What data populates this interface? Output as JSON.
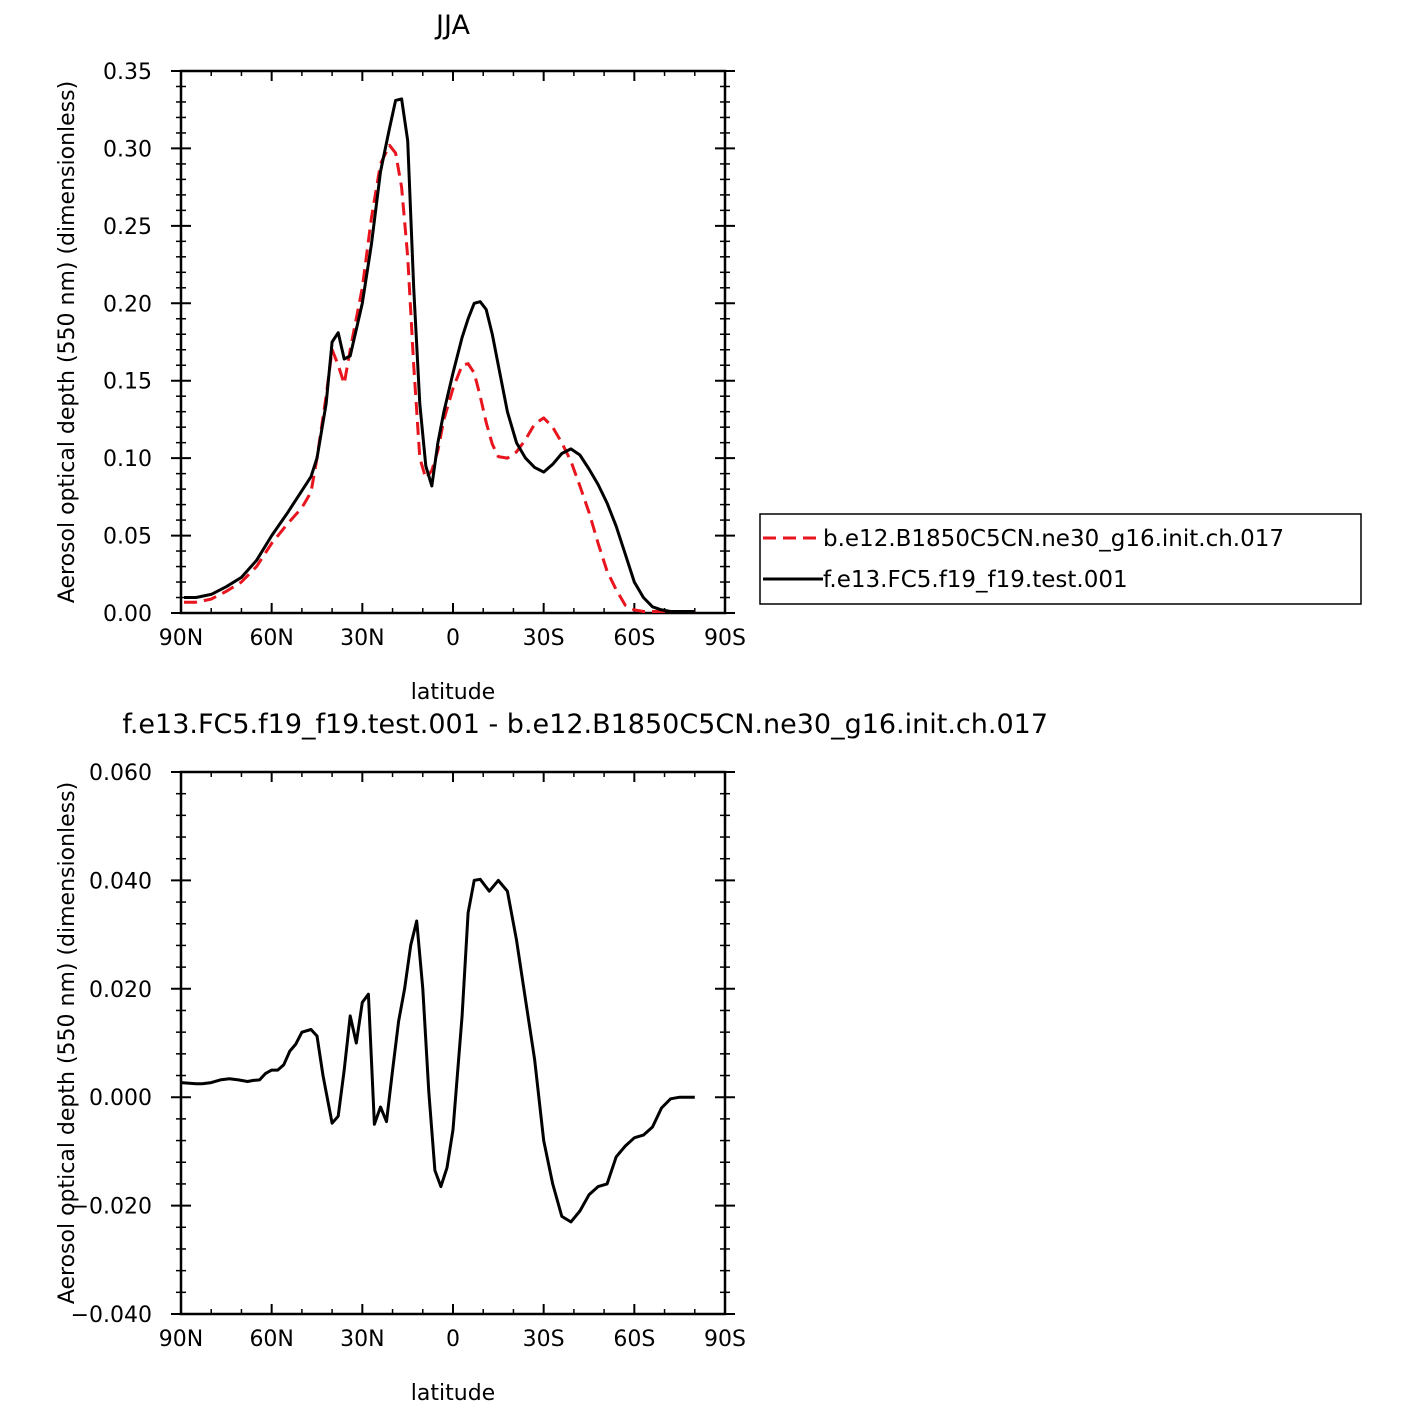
{
  "chart_data": [
    {
      "type": "line",
      "title": "JJA",
      "xlabel": "latitude",
      "ylabel": "Aerosol optical depth (550 nm) (dimensionless)",
      "xlim": [
        -90,
        90
      ],
      "ylim": [
        0,
        0.35
      ],
      "x_ticks": [
        -90,
        -60,
        -30,
        0,
        30,
        60,
        90
      ],
      "x_tick_labels": [
        "90N",
        "60N",
        "30N",
        "0",
        "30S",
        "60S",
        "90S"
      ],
      "y_ticks": [
        0,
        0.05,
        0.1,
        0.15,
        0.2,
        0.25,
        0.3,
        0.35
      ],
      "y_tick_labels": [
        "0.00",
        "0.05",
        "0.10",
        "0.15",
        "0.20",
        "0.25",
        "0.30",
        "0.35"
      ],
      "legend_position": "right",
      "x": [
        -89,
        -85,
        -80,
        -75,
        -70,
        -65,
        -60,
        -55,
        -50,
        -47,
        -45,
        -42,
        -40,
        -38,
        -36,
        -34,
        -30,
        -27,
        -24,
        -21,
        -19,
        -17,
        -15,
        -13,
        -11,
        -9,
        -7,
        -5,
        -3,
        0,
        3,
        5,
        7,
        9,
        11,
        13,
        15,
        18,
        21,
        24,
        27,
        30,
        33,
        36,
        39,
        42,
        45,
        48,
        51,
        54,
        57,
        60,
        63,
        66,
        69,
        72,
        75,
        78,
        80
      ],
      "series": [
        {
          "name": "b.e12.B1850C5CN.ne30_g16.init.ch.017",
          "color": "#e8141e",
          "dash": "dashed",
          "values": [
            0.007,
            0.007,
            0.009,
            0.014,
            0.02,
            0.03,
            0.045,
            0.057,
            0.068,
            0.078,
            0.1,
            0.14,
            0.17,
            0.16,
            0.148,
            0.17,
            0.21,
            0.255,
            0.29,
            0.302,
            0.297,
            0.275,
            0.23,
            0.16,
            0.1,
            0.087,
            0.092,
            0.105,
            0.125,
            0.145,
            0.16,
            0.161,
            0.155,
            0.14,
            0.123,
            0.109,
            0.101,
            0.1,
            0.104,
            0.112,
            0.122,
            0.126,
            0.12,
            0.11,
            0.098,
            0.082,
            0.065,
            0.045,
            0.027,
            0.015,
            0.005,
            0.002,
            0.001,
            0.001,
            0.001,
            0.001,
            0.001,
            0.001,
            0.001
          ]
        },
        {
          "name": "f.e13.FC5.f19_f19.test.001",
          "color": "#000000",
          "dash": "solid",
          "values": [
            0.01,
            0.01,
            0.012,
            0.017,
            0.023,
            0.034,
            0.05,
            0.064,
            0.079,
            0.088,
            0.1,
            0.135,
            0.175,
            0.181,
            0.164,
            0.166,
            0.2,
            0.238,
            0.285,
            0.313,
            0.331,
            0.332,
            0.305,
            0.21,
            0.135,
            0.095,
            0.082,
            0.11,
            0.13,
            0.155,
            0.178,
            0.19,
            0.2,
            0.201,
            0.196,
            0.18,
            0.16,
            0.13,
            0.11,
            0.1,
            0.094,
            0.091,
            0.096,
            0.103,
            0.106,
            0.102,
            0.093,
            0.083,
            0.071,
            0.056,
            0.038,
            0.02,
            0.01,
            0.004,
            0.002,
            0.001,
            0.001,
            0.001,
            0.001
          ]
        }
      ]
    },
    {
      "type": "line",
      "title": "f.e13.FC5.f19_f19.test.001 - b.e12.B1850C5CN.ne30_g16.init.ch.017",
      "xlabel": "latitude",
      "ylabel": "Aerosol optical depth (550 nm) (dimensionless)",
      "xlim": [
        -90,
        90
      ],
      "ylim": [
        -0.04,
        0.06
      ],
      "x_ticks": [
        -90,
        -60,
        -30,
        0,
        30,
        60,
        90
      ],
      "x_tick_labels": [
        "90N",
        "60N",
        "30N",
        "0",
        "30S",
        "60S",
        "90S"
      ],
      "y_ticks": [
        -0.04,
        -0.02,
        0,
        0.02,
        0.04,
        0.06
      ],
      "y_tick_labels": [
        "−0.040",
        "−0.020",
        "0.000",
        "0.020",
        "0.040",
        "0.060"
      ],
      "x": [
        -90,
        -85,
        -83,
        -80,
        -77,
        -74,
        -71,
        -68,
        -66,
        -64,
        -62,
        -60,
        -58,
        -56,
        -54,
        -52,
        -50,
        -47,
        -45,
        -43,
        -40,
        -38,
        -36,
        -34,
        -32,
        -30,
        -28,
        -26,
        -24,
        -22,
        -20,
        -18,
        -16,
        -14,
        -12,
        -10,
        -8,
        -6,
        -4,
        -2,
        0,
        3,
        5,
        7,
        9,
        12,
        15,
        18,
        21,
        24,
        27,
        30,
        33,
        36,
        39,
        42,
        45,
        48,
        51,
        54,
        57,
        60,
        63,
        66,
        69,
        72,
        75,
        78,
        80
      ],
      "series": [
        {
          "name": "",
          "color": "#000000",
          "dash": "solid",
          "values": [
            0.0027,
            0.0025,
            0.0025,
            0.0027,
            0.0032,
            0.0034,
            0.0032,
            0.0029,
            0.0031,
            0.0032,
            0.0044,
            0.005,
            0.005,
            0.006,
            0.0085,
            0.0098,
            0.012,
            0.0125,
            0.0113,
            0.004,
            -0.0048,
            -0.0035,
            0.005,
            0.015,
            0.01,
            0.0175,
            0.019,
            -0.005,
            -0.0018,
            -0.0045,
            0.005,
            0.014,
            0.02,
            0.028,
            0.0325,
            0.02,
            0.001,
            -0.0135,
            -0.0165,
            -0.013,
            -0.006,
            0.015,
            0.034,
            0.04,
            0.0402,
            0.038,
            0.04,
            0.038,
            0.029,
            0.018,
            0.007,
            -0.008,
            -0.016,
            -0.022,
            -0.023,
            -0.021,
            -0.018,
            -0.0165,
            -0.016,
            -0.011,
            -0.009,
            -0.0075,
            -0.007,
            -0.0055,
            -0.002,
            -0.0003,
            0,
            0,
            0
          ]
        }
      ]
    }
  ]
}
